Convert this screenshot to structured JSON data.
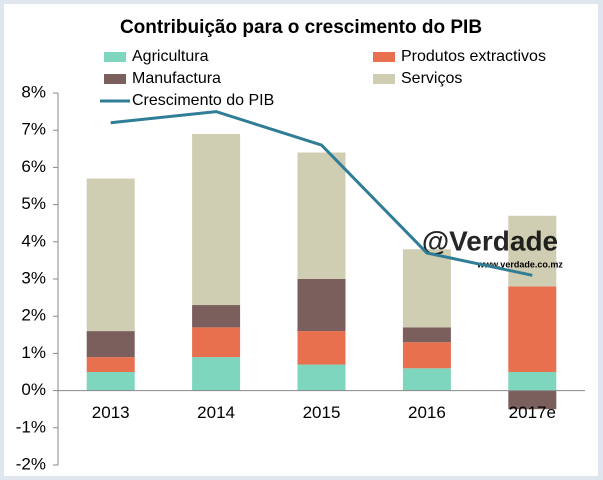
{
  "chart_data": {
    "type": "stacked_bar_line",
    "title": "Contribuição para o crescimento do PIB",
    "categories": [
      "2013",
      "2014",
      "2015",
      "2016",
      "2017e"
    ],
    "series": [
      {
        "name": "Agricultura",
        "color": "#7dd6bd",
        "type": "bar",
        "values": [
          0.5,
          0.9,
          0.7,
          0.6,
          0.5
        ]
      },
      {
        "name": "Produtos extractivos",
        "color": "#e8704f",
        "type": "bar",
        "values": [
          0.4,
          0.8,
          0.9,
          0.7,
          2.3
        ]
      },
      {
        "name": "Manufactura",
        "color": "#7b5f5d",
        "type": "bar",
        "values": [
          0.7,
          0.6,
          1.4,
          0.4,
          -0.5
        ]
      },
      {
        "name": "Serviços",
        "color": "#d0ceb2",
        "type": "bar",
        "values": [
          4.1,
          4.6,
          3.4,
          2.1,
          1.9
        ]
      },
      {
        "name": "Crescimento do PIB",
        "color": "#2f7d96",
        "type": "line",
        "values": [
          7.2,
          7.5,
          6.6,
          3.7,
          3.1
        ]
      }
    ],
    "ylim": [
      -2,
      8
    ],
    "yticks": [
      {
        "value": -2,
        "label": "-2%"
      },
      {
        "value": -1,
        "label": "-1%"
      },
      {
        "value": 0,
        "label": "0%"
      },
      {
        "value": 1,
        "label": "1%"
      },
      {
        "value": 2,
        "label": "2%"
      },
      {
        "value": 3,
        "label": "3%"
      },
      {
        "value": 4,
        "label": "4%"
      },
      {
        "value": 5,
        "label": "5%"
      },
      {
        "value": 6,
        "label": "6%"
      },
      {
        "value": 7,
        "label": "7%"
      },
      {
        "value": 8,
        "label": "8%"
      }
    ],
    "grid": false,
    "watermark": "@Verdade",
    "watermark_url": "www.verdade.co.mz"
  }
}
